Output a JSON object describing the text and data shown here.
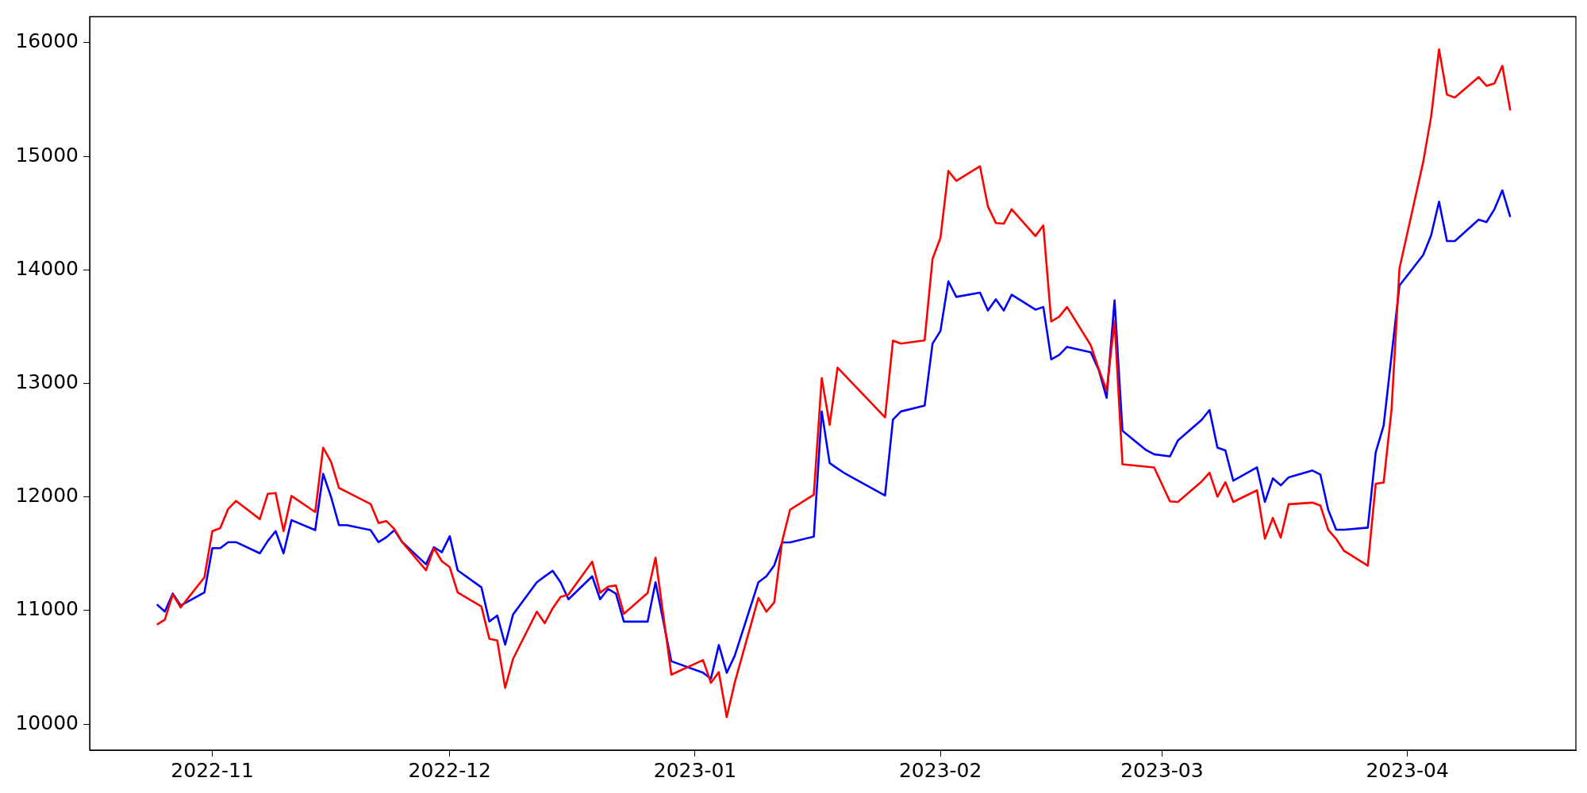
{
  "chart_data": {
    "type": "line",
    "xlim": [
      "2022-10-16T12:00",
      "2023-04-22T07:00"
    ],
    "xticks": [
      "2022-11",
      "2022-12",
      "2023-01",
      "2023-02",
      "2023-03",
      "2023-04"
    ],
    "ylim": [
      9770,
      16230
    ],
    "yticks": [
      10000,
      11000,
      12000,
      13000,
      14000,
      15000,
      16000
    ],
    "grid": false,
    "legend": false,
    "marker": "none",
    "line_style": "solid",
    "series": [
      {
        "color": "#ff0000",
        "x": [
          "2022-10-25",
          "2022-10-26",
          "2022-10-27",
          "2022-10-28",
          "2022-10-31",
          "2022-11-01",
          "2022-11-02",
          "2022-11-03",
          "2022-11-04",
          "2022-11-07",
          "2022-11-08",
          "2022-11-09",
          "2022-11-10",
          "2022-11-11",
          "2022-11-14",
          "2022-11-15",
          "2022-11-16",
          "2022-11-17",
          "2022-11-18",
          "2022-11-21",
          "2022-11-22",
          "2022-11-23",
          "2022-11-24",
          "2022-11-25",
          "2022-11-28",
          "2022-11-29",
          "2022-11-30",
          "2022-12-01",
          "2022-12-02",
          "2022-12-05",
          "2022-12-06",
          "2022-12-07",
          "2022-12-08",
          "2022-12-09",
          "2022-12-12",
          "2022-12-13",
          "2022-12-14",
          "2022-12-15",
          "2022-12-16",
          "2022-12-19",
          "2022-12-20",
          "2022-12-21",
          "2022-12-22",
          "2022-12-23",
          "2022-12-26",
          "2022-12-27",
          "2022-12-29",
          "2023-01-02",
          "2023-01-03",
          "2023-01-04",
          "2023-01-05",
          "2023-01-06",
          "2023-01-09",
          "2023-01-10",
          "2023-01-11",
          "2023-01-12",
          "2023-01-13",
          "2023-01-16",
          "2023-01-17",
          "2023-01-18",
          "2023-01-19",
          "2023-01-25",
          "2023-01-26",
          "2023-01-27",
          "2023-01-30",
          "2023-01-31",
          "2023-02-01",
          "2023-02-02",
          "2023-02-03",
          "2023-02-06",
          "2023-02-07",
          "2023-02-08",
          "2023-02-09",
          "2023-02-10",
          "2023-02-13",
          "2023-02-14",
          "2023-02-15",
          "2023-02-16",
          "2023-02-17",
          "2023-02-20",
          "2023-02-21",
          "2023-02-22",
          "2023-02-23",
          "2023-02-24",
          "2023-02-27",
          "2023-02-28",
          "2023-03-02",
          "2023-03-03",
          "2023-03-06",
          "2023-03-07",
          "2023-03-08",
          "2023-03-09",
          "2023-03-10",
          "2023-03-13",
          "2023-03-14",
          "2023-03-15",
          "2023-03-16",
          "2023-03-17",
          "2023-03-20",
          "2023-03-21",
          "2023-03-22",
          "2023-03-23",
          "2023-03-24",
          "2023-03-27",
          "2023-03-28",
          "2023-03-29",
          "2023-03-30",
          "2023-03-31",
          "2023-04-03",
          "2023-04-04",
          "2023-04-05",
          "2023-04-06",
          "2023-04-07",
          "2023-04-10",
          "2023-04-11",
          "2023-04-12",
          "2023-04-13",
          "2023-04-14"
        ],
        "values": [
          10876,
          10920,
          11142,
          11027,
          11292,
          11699,
          11726,
          11894,
          11965,
          11805,
          12027,
          12035,
          11699,
          12009,
          11867,
          12434,
          12310,
          12080,
          12044,
          11938,
          11770,
          11788,
          11717,
          11602,
          11354,
          11549,
          11434,
          11381,
          11159,
          11035,
          10752,
          10735,
          10319,
          10575,
          10990,
          10889,
          11019,
          11120,
          11140,
          11430,
          11157,
          11210,
          11220,
          10971,
          11154,
          11465,
          10435,
          10564,
          10363,
          10457,
          10061,
          10363,
          11111,
          10990,
          11071,
          11609,
          11888,
          12020,
          13047,
          12635,
          13139,
          12701,
          13377,
          13351,
          13379,
          14097,
          14282,
          14871,
          14784,
          14912,
          14558,
          14413,
          14407,
          14534,
          14298,
          14391,
          13546,
          13588,
          13673,
          13335,
          13127,
          12935,
          13550,
          12288,
          12267,
          12260,
          11961,
          11956,
          12136,
          12214,
          12003,
          12130,
          11956,
          12059,
          11632,
          11815,
          11642,
          11936,
          11950,
          11925,
          11710,
          11631,
          11525,
          11395,
          12116,
          12127,
          12771,
          14013,
          14951,
          15349,
          15942,
          15543,
          15518,
          15698,
          15620,
          15642,
          15797,
          15404
        ]
      },
      {
        "color": "#0000ff",
        "x": [
          "2022-10-25",
          "2022-10-26",
          "2022-10-27",
          "2022-10-28",
          "2022-10-31",
          "2022-11-01",
          "2022-11-02",
          "2022-11-03",
          "2022-11-04",
          "2022-11-07",
          "2022-11-08",
          "2022-11-09",
          "2022-11-10",
          "2022-11-11",
          "2022-11-14",
          "2022-11-15",
          "2022-11-16",
          "2022-11-17",
          "2022-11-18",
          "2022-11-21",
          "2022-11-22",
          "2022-11-23",
          "2022-11-24",
          "2022-11-25",
          "2022-11-28",
          "2022-11-29",
          "2022-11-30",
          "2022-12-01",
          "2022-12-02",
          "2022-12-05",
          "2022-12-06",
          "2022-12-07",
          "2022-12-08",
          "2022-12-09",
          "2022-12-12",
          "2022-12-13",
          "2022-12-14",
          "2022-12-15",
          "2022-12-16",
          "2022-12-19",
          "2022-12-20",
          "2022-12-21",
          "2022-12-22",
          "2022-12-23",
          "2022-12-26",
          "2022-12-27",
          "2022-12-29",
          "2023-01-02",
          "2023-01-03",
          "2023-01-04",
          "2023-01-05",
          "2023-01-06",
          "2023-01-09",
          "2023-01-10",
          "2023-01-11",
          "2023-01-12",
          "2023-01-13",
          "2023-01-16",
          "2023-01-17",
          "2023-01-18",
          "2023-01-19",
          "2023-01-20",
          "2023-01-25",
          "2023-01-26",
          "2023-01-27",
          "2023-01-30",
          "2023-01-31",
          "2023-02-01",
          "2023-02-02",
          "2023-02-03",
          "2023-02-06",
          "2023-02-07",
          "2023-02-08",
          "2023-02-09",
          "2023-02-10",
          "2023-02-13",
          "2023-02-14",
          "2023-02-15",
          "2023-02-16",
          "2023-02-17",
          "2023-02-20",
          "2023-02-21",
          "2023-02-22",
          "2023-02-23",
          "2023-02-24",
          "2023-02-27",
          "2023-02-28",
          "2023-03-02",
          "2023-03-03",
          "2023-03-06",
          "2023-03-07",
          "2023-03-08",
          "2023-03-09",
          "2023-03-10",
          "2023-03-13",
          "2023-03-14",
          "2023-03-15",
          "2023-03-16",
          "2023-03-17",
          "2023-03-20",
          "2023-03-21",
          "2023-03-22",
          "2023-03-23",
          "2023-03-24",
          "2023-03-27",
          "2023-03-28",
          "2023-03-29",
          "2023-03-31",
          "2023-04-03",
          "2023-04-04",
          "2023-04-05",
          "2023-04-06",
          "2023-04-07",
          "2023-04-10",
          "2023-04-11",
          "2023-04-12",
          "2023-04-13",
          "2023-04-14"
        ],
        "values": [
          11053,
          10991,
          11150,
          11044,
          11159,
          11549,
          11549,
          11602,
          11602,
          11504,
          11611,
          11699,
          11504,
          11796,
          11708,
          12204,
          12000,
          11752,
          11752,
          11708,
          11602,
          11646,
          11708,
          11602,
          11407,
          11558,
          11513,
          11655,
          11354,
          11204,
          10903,
          10956,
          10699,
          10965,
          11249,
          11300,
          11350,
          11249,
          11099,
          11301,
          11099,
          11190,
          11148,
          10902,
          10902,
          11249,
          10553,
          10452,
          10400,
          10696,
          10452,
          10600,
          11249,
          11301,
          11398,
          11600,
          11600,
          11651,
          12753,
          12299,
          12250,
          12204,
          12012,
          12681,
          12753,
          12804,
          13350,
          13462,
          13899,
          13762,
          13800,
          13642,
          13741,
          13642,
          13781,
          13650,
          13673,
          13212,
          13251,
          13322,
          13274,
          13119,
          12873,
          13732,
          12583,
          12412,
          12376,
          12357,
          12497,
          12679,
          12766,
          12434,
          12410,
          12143,
          12260,
          11957,
          12163,
          12102,
          12173,
          12233,
          12198,
          11886,
          11712,
          11712,
          11730,
          12393,
          12629,
          13862,
          14131,
          14304,
          14601,
          14254,
          14254,
          14442,
          14421,
          14534,
          14700,
          14466
        ]
      }
    ]
  }
}
